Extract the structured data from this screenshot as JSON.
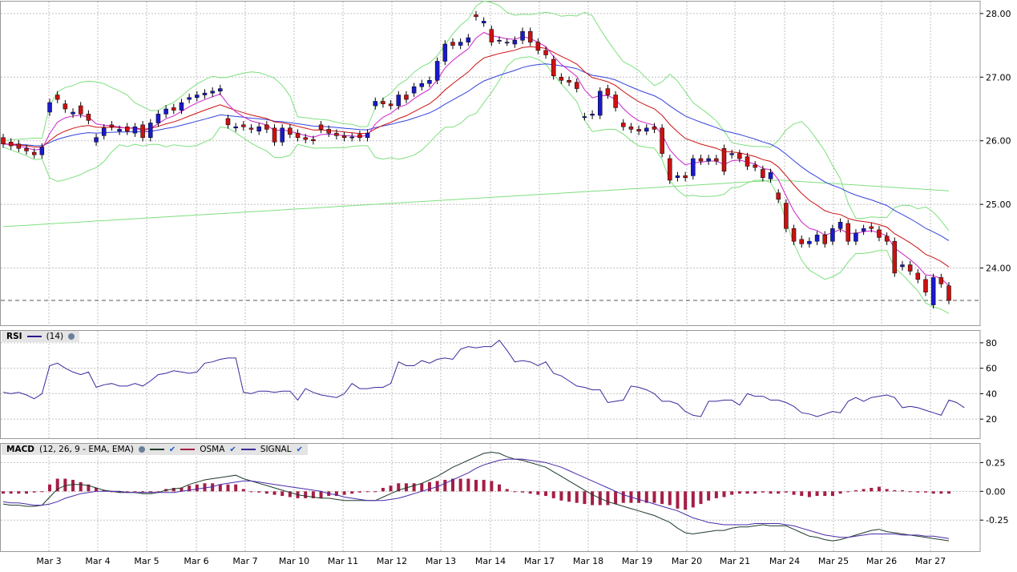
{
  "chart_data": [
    {
      "type": "candlestick",
      "panel": "price",
      "x_categories": [
        "Mar 3",
        "Mar 4",
        "Mar 5",
        "Mar 6",
        "Mar 7",
        "Mar 10",
        "Mar 11",
        "Mar 12",
        "Mar 13",
        "Mar 14",
        "Mar 17",
        "Mar 18",
        "Mar 19",
        "Mar 20",
        "Mar 21",
        "Mar 24",
        "Mar 25",
        "Mar 26",
        "Mar 27"
      ],
      "y_ticks": [
        "28.00",
        "27.00",
        "26.00",
        "25.00",
        "24.00"
      ],
      "ylim": [
        23.1,
        28.2
      ],
      "last_price_line": 23.49,
      "closes": [
        25.95,
        25.92,
        25.88,
        25.84,
        25.78,
        25.9,
        26.6,
        26.65,
        26.5,
        26.45,
        26.42,
        26.32,
        26.05,
        26.2,
        26.22,
        26.18,
        26.15,
        26.22,
        26.05,
        26.28,
        26.42,
        26.5,
        26.48,
        26.6,
        26.68,
        26.72,
        26.75,
        26.78,
        26.82,
        26.25,
        26.22,
        26.22,
        26.18,
        26.22,
        26.18,
        25.98,
        26.2,
        26.1,
        26.05,
        26.02,
        26.0,
        26.18,
        26.12,
        26.08,
        26.05,
        26.06,
        26.05,
        26.12,
        26.62,
        26.58,
        26.55,
        26.72,
        26.65,
        26.85,
        26.9,
        26.95,
        27.25,
        27.52,
        27.5,
        27.55,
        27.62,
        27.95,
        27.88,
        27.55,
        27.58,
        27.55,
        27.58,
        27.72,
        27.55,
        27.42,
        27.35,
        27.02,
        26.95,
        26.92,
        26.82,
        26.38,
        26.42,
        26.78,
        26.72,
        26.52,
        26.22,
        26.18,
        26.15,
        26.2,
        26.18,
        25.8,
        25.38,
        25.45,
        25.42,
        25.72,
        25.68,
        25.72,
        25.68,
        25.52,
        25.8,
        25.72,
        25.6,
        25.58,
        25.42,
        25.5,
        25.08,
        24.62,
        24.42,
        24.38,
        24.42,
        24.52,
        24.38,
        24.62,
        24.72,
        24.42,
        24.55,
        24.62,
        24.62,
        24.48,
        24.42,
        23.92,
        24.05,
        23.95,
        23.82,
        23.62,
        23.85,
        23.75,
        23.49
      ],
      "opens": [
        26.05,
        25.98,
        25.95,
        25.88,
        25.82,
        25.78,
        26.45,
        26.72,
        26.58,
        26.42,
        26.55,
        26.42,
        25.98,
        26.08,
        26.25,
        26.15,
        26.22,
        26.12,
        26.25,
        26.05,
        26.28,
        26.42,
        26.52,
        26.48,
        26.65,
        26.68,
        26.72,
        26.75,
        26.78,
        26.35,
        26.2,
        26.25,
        26.2,
        26.15,
        26.25,
        26.2,
        25.98,
        26.2,
        26.12,
        26.05,
        26.02,
        26.25,
        26.18,
        26.12,
        26.08,
        26.05,
        26.1,
        26.05,
        26.55,
        26.62,
        26.58,
        26.55,
        26.72,
        26.75,
        26.85,
        26.9,
        26.95,
        27.25,
        27.55,
        27.5,
        27.55,
        27.98,
        27.85,
        27.75,
        27.58,
        27.55,
        27.52,
        27.58,
        27.72,
        27.55,
        27.42,
        27.28,
        27.0,
        26.95,
        26.92,
        26.38,
        26.4,
        26.4,
        26.82,
        26.72,
        26.28,
        26.22,
        26.18,
        26.15,
        26.22,
        26.2,
        25.72,
        25.42,
        25.45,
        25.45,
        25.72,
        25.68,
        25.72,
        25.88,
        25.78,
        25.8,
        25.75,
        25.62,
        25.55,
        25.4,
        25.18,
        25.02,
        24.62,
        24.45,
        24.38,
        24.42,
        24.52,
        24.42,
        24.62,
        24.7,
        24.42,
        24.58,
        24.65,
        24.6,
        24.5,
        24.42,
        24.02,
        24.05,
        23.92,
        23.82,
        23.42,
        23.85,
        23.72
      ]
    },
    {
      "type": "line",
      "panel": "rsi",
      "legend": "RSI",
      "period_label": "(14)",
      "y_ticks": [
        "80",
        "60",
        "40",
        "20"
      ],
      "ylim": [
        5,
        90
      ],
      "values": [
        41,
        40,
        41,
        39,
        36,
        40,
        62,
        64,
        60,
        57,
        55,
        57,
        45,
        47,
        48,
        46,
        46,
        48,
        46,
        50,
        55,
        56,
        58,
        57,
        56,
        57,
        64,
        65,
        67,
        68,
        68,
        41,
        40,
        42,
        42,
        41,
        42,
        42,
        35,
        44,
        41,
        39,
        38,
        37,
        40,
        48,
        44,
        44,
        45,
        45,
        48,
        65,
        62,
        62,
        66,
        64,
        67,
        68,
        67,
        75,
        77,
        76,
        77,
        77,
        82,
        74,
        65,
        66,
        65,
        62,
        65,
        56,
        54,
        50,
        46,
        45,
        43,
        43,
        33,
        34,
        35,
        46,
        45,
        43,
        40,
        34,
        34,
        32,
        26,
        23,
        22,
        34,
        34,
        35,
        35,
        31,
        40,
        38,
        38,
        35,
        35,
        33,
        30,
        25,
        24,
        22,
        24,
        26,
        25,
        34,
        37,
        34,
        37,
        38,
        39,
        37,
        29,
        30,
        29,
        27,
        25,
        23,
        35,
        33,
        29
      ]
    },
    {
      "type": "combo",
      "panel": "macd",
      "legend": "MACD",
      "params_label": "(12, 26, 9 - EMA, EMA)",
      "series_names": [
        "OSMA",
        "SIGNAL"
      ],
      "y_ticks": [
        "0.25",
        "0.00",
        "-0.25"
      ],
      "ylim": [
        -0.52,
        0.42
      ],
      "macd": [
        -0.11,
        -0.12,
        -0.12,
        -0.13,
        -0.13,
        -0.12,
        -0.05,
        0.02,
        0.05,
        0.06,
        0.06,
        0.05,
        0.03,
        0.01,
        0.0,
        -0.01,
        -0.01,
        -0.01,
        -0.02,
        -0.02,
        -0.01,
        0.01,
        0.02,
        0.03,
        0.06,
        0.08,
        0.1,
        0.11,
        0.12,
        0.13,
        0.14,
        0.11,
        0.09,
        0.07,
        0.05,
        0.03,
        0.01,
        -0.01,
        -0.03,
        -0.04,
        -0.05,
        -0.06,
        -0.06,
        -0.07,
        -0.08,
        -0.08,
        -0.08,
        -0.08,
        -0.08,
        -0.05,
        -0.02,
        0.01,
        0.03,
        0.05,
        0.07,
        0.1,
        0.13,
        0.17,
        0.21,
        0.24,
        0.27,
        0.3,
        0.33,
        0.34,
        0.33,
        0.3,
        0.28,
        0.27,
        0.25,
        0.23,
        0.21,
        0.17,
        0.13,
        0.09,
        0.05,
        0.01,
        -0.03,
        -0.06,
        -0.09,
        -0.11,
        -0.13,
        -0.15,
        -0.17,
        -0.19,
        -0.21,
        -0.24,
        -0.27,
        -0.32,
        -0.36,
        -0.37,
        -0.36,
        -0.35,
        -0.34,
        -0.34,
        -0.32,
        -0.31,
        -0.31,
        -0.3,
        -0.29,
        -0.3,
        -0.3,
        -0.3,
        -0.33,
        -0.36,
        -0.39,
        -0.4,
        -0.42,
        -0.43,
        -0.42,
        -0.4,
        -0.38,
        -0.36,
        -0.34,
        -0.33,
        -0.35,
        -0.36,
        -0.37,
        -0.38,
        -0.39,
        -0.4,
        -0.41,
        -0.42,
        -0.43
      ],
      "signal": [
        -0.09,
        -0.1,
        -0.1,
        -0.11,
        -0.12,
        -0.12,
        -0.11,
        -0.09,
        -0.06,
        -0.04,
        -0.02,
        -0.01,
        0.0,
        0.0,
        0.0,
        0.0,
        -0.01,
        -0.01,
        -0.01,
        -0.01,
        -0.01,
        -0.01,
        -0.01,
        0.0,
        0.01,
        0.02,
        0.03,
        0.04,
        0.06,
        0.07,
        0.08,
        0.09,
        0.09,
        0.08,
        0.07,
        0.06,
        0.05,
        0.04,
        0.03,
        0.02,
        0.01,
        0.0,
        -0.02,
        -0.03,
        -0.05,
        -0.06,
        -0.07,
        -0.08,
        -0.08,
        -0.08,
        -0.07,
        -0.06,
        -0.04,
        -0.02,
        0.0,
        0.02,
        0.04,
        0.07,
        0.1,
        0.13,
        0.16,
        0.2,
        0.23,
        0.25,
        0.27,
        0.28,
        0.28,
        0.28,
        0.27,
        0.26,
        0.25,
        0.23,
        0.21,
        0.18,
        0.15,
        0.12,
        0.09,
        0.06,
        0.03,
        0.0,
        -0.03,
        -0.05,
        -0.07,
        -0.09,
        -0.11,
        -0.13,
        -0.15,
        -0.17,
        -0.2,
        -0.23,
        -0.25,
        -0.27,
        -0.28,
        -0.29,
        -0.29,
        -0.29,
        -0.29,
        -0.28,
        -0.28,
        -0.28,
        -0.28,
        -0.29,
        -0.3,
        -0.32,
        -0.34,
        -0.36,
        -0.38,
        -0.39,
        -0.4,
        -0.4,
        -0.39,
        -0.38,
        -0.37,
        -0.37,
        -0.37,
        -0.37,
        -0.38,
        -0.38,
        -0.38,
        -0.39,
        -0.39,
        -0.4,
        -0.41
      ]
    }
  ]
}
